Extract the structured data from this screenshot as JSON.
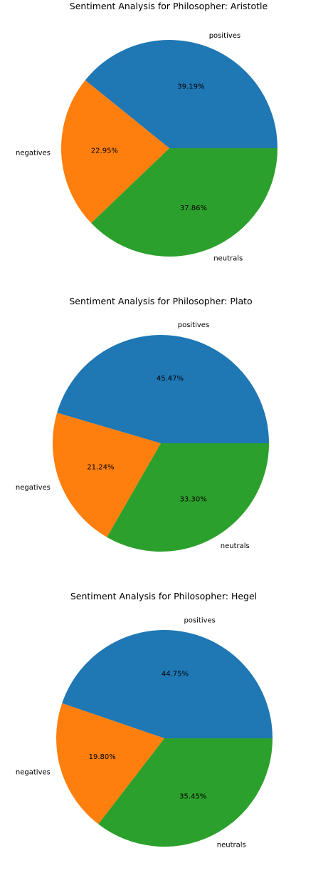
{
  "chart_data": [
    {
      "type": "pie",
      "title": "Sentiment Analysis for  Philosopher: Aristotle",
      "slices": [
        {
          "label": "positives",
          "value": 39.19,
          "pct_label": "39.19%",
          "color": "#1f77b4"
        },
        {
          "label": "negatives",
          "value": 22.95,
          "pct_label": "22.95%",
          "color": "#ff7f0e"
        },
        {
          "label": "neutrals",
          "value": 37.86,
          "pct_label": "37.86%",
          "color": "#2ca02c"
        }
      ]
    },
    {
      "type": "pie",
      "title": "Sentiment Analysis for  Philosopher: Plato",
      "slices": [
        {
          "label": "positives",
          "value": 45.47,
          "pct_label": "45.47%",
          "color": "#1f77b4"
        },
        {
          "label": "negatives",
          "value": 21.24,
          "pct_label": "21.24%",
          "color": "#ff7f0e"
        },
        {
          "label": "neutrals",
          "value": 33.3,
          "pct_label": "33.30%",
          "color": "#2ca02c"
        }
      ]
    },
    {
      "type": "pie",
      "title": "Sentiment Analysis for  Philosopher: Hegel",
      "slices": [
        {
          "label": "positives",
          "value": 44.75,
          "pct_label": "44.75%",
          "color": "#1f77b4"
        },
        {
          "label": "negatives",
          "value": 19.8,
          "pct_label": "19.80%",
          "color": "#ff7f0e"
        },
        {
          "label": "neutrals",
          "value": 35.45,
          "pct_label": "35.45%",
          "color": "#2ca02c"
        }
      ]
    }
  ]
}
